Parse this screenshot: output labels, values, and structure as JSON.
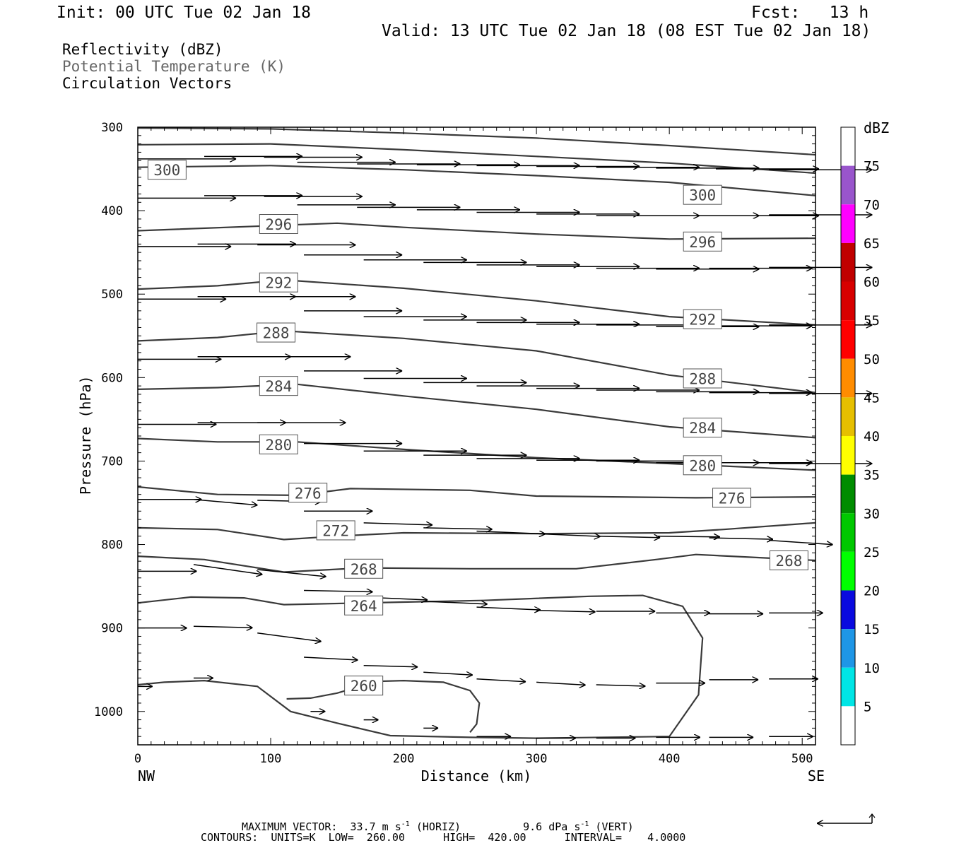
{
  "header": {
    "init": "Init: 00 UTC Tue 02 Jan 18",
    "fcst": "Fcst:   13 h",
    "valid": "Valid: 13 UTC Tue 02 Jan 18 (08 EST Tue 02 Jan 18)"
  },
  "legend": {
    "line1": "Reflectivity (dBZ)",
    "line2": "Potential Temperature (K)",
    "line3": "Circulation Vectors",
    "line2_color": "#666666"
  },
  "footer": {
    "max_vector_line_a": "MAXIMUM VECTOR:  33.7 m s",
    "max_vector_line_b": " (HORIZ)",
    "max_vector_line_c": "9.6 dPa s",
    "max_vector_line_d": " (VERT)",
    "superscript": "-1",
    "contours_line": "CONTOURS:  UNITS=K  LOW=  260.00      HIGH=  420.00      INTERVAL=    4.0000"
  },
  "chart_data": {
    "type": "contour",
    "xlabel": "Distance (km)",
    "ylabel": "Pressure (hPa)",
    "xlim": [
      0,
      510
    ],
    "ylim": [
      300,
      1040
    ],
    "x_ticks": [
      0,
      100,
      200,
      300,
      400,
      500
    ],
    "y_ticks": [
      300,
      400,
      500,
      600,
      700,
      800,
      900,
      1000
    ],
    "x_left_label": "NW",
    "x_right_label": "SE",
    "contours": [
      {
        "level": "300",
        "points": [
          [
            0,
            348
          ],
          [
            100,
            346
          ],
          [
            200,
            351
          ],
          [
            300,
            358
          ],
          [
            400,
            366
          ],
          [
            510,
            382
          ]
        ],
        "labels": [
          [
            22,
            351
          ],
          [
            425,
            381
          ]
        ]
      },
      {
        "level": "",
        "points": [
          [
            0,
            321
          ],
          [
            100,
            320
          ],
          [
            200,
            327
          ],
          [
            300,
            335
          ],
          [
            400,
            343
          ],
          [
            510,
            355
          ]
        ],
        "labels": []
      },
      {
        "level": "",
        "points": [
          [
            0,
            301
          ],
          [
            100,
            302
          ],
          [
            200,
            307
          ],
          [
            300,
            313
          ],
          [
            400,
            322
          ],
          [
            510,
            333
          ]
        ],
        "labels": []
      },
      {
        "level": "296",
        "points": [
          [
            0,
            424
          ],
          [
            100,
            418
          ],
          [
            150,
            415
          ],
          [
            200,
            420
          ],
          [
            300,
            428
          ],
          [
            400,
            434
          ],
          [
            510,
            433
          ]
        ],
        "labels": [
          [
            106,
            416
          ],
          [
            425,
            437
          ]
        ]
      },
      {
        "level": "292",
        "points": [
          [
            0,
            494
          ],
          [
            60,
            490
          ],
          [
            110,
            483
          ],
          [
            200,
            493
          ],
          [
            300,
            508
          ],
          [
            400,
            527
          ],
          [
            510,
            537
          ]
        ],
        "labels": [
          [
            106,
            486
          ],
          [
            425,
            530
          ]
        ]
      },
      {
        "level": "288",
        "points": [
          [
            0,
            556
          ],
          [
            60,
            552
          ],
          [
            110,
            544
          ],
          [
            200,
            553
          ],
          [
            300,
            568
          ],
          [
            400,
            597
          ],
          [
            510,
            618
          ]
        ],
        "labels": [
          [
            104,
            546
          ],
          [
            425,
            601
          ]
        ]
      },
      {
        "level": "284",
        "points": [
          [
            0,
            614
          ],
          [
            60,
            612
          ],
          [
            120,
            608
          ],
          [
            200,
            622
          ],
          [
            300,
            638
          ],
          [
            400,
            659
          ],
          [
            510,
            672
          ]
        ],
        "labels": [
          [
            106,
            610
          ],
          [
            425,
            660
          ]
        ]
      },
      {
        "level": "280",
        "points": [
          [
            0,
            673
          ],
          [
            60,
            677
          ],
          [
            120,
            677
          ],
          [
            200,
            686
          ],
          [
            300,
            696
          ],
          [
            400,
            703
          ],
          [
            510,
            711
          ]
        ],
        "labels": [
          [
            106,
            680
          ],
          [
            425,
            705
          ]
        ]
      },
      {
        "level": "276",
        "points": [
          [
            0,
            731
          ],
          [
            60,
            740
          ],
          [
            120,
            741
          ],
          [
            160,
            733
          ],
          [
            250,
            735
          ],
          [
            300,
            742
          ],
          [
            420,
            744
          ],
          [
            510,
            743
          ]
        ],
        "labels": [
          [
            128,
            738
          ],
          [
            447,
            744
          ]
        ]
      },
      {
        "level": "272",
        "points": [
          [
            0,
            780
          ],
          [
            60,
            782
          ],
          [
            110,
            794
          ],
          [
            150,
            790
          ],
          [
            200,
            786
          ],
          [
            300,
            787
          ],
          [
            400,
            786
          ],
          [
            440,
            782
          ],
          [
            510,
            774
          ]
        ],
        "labels": [
          [
            149,
            783
          ],
          [
            0,
            0
          ]
        ]
      },
      {
        "level": "268",
        "points": [
          [
            0,
            814
          ],
          [
            50,
            818
          ],
          [
            110,
            833
          ],
          [
            170,
            828
          ],
          [
            250,
            829
          ],
          [
            330,
            829
          ],
          [
            390,
            818
          ],
          [
            420,
            812
          ],
          [
            510,
            819
          ]
        ],
        "labels": [
          [
            170,
            829
          ],
          [
            490,
            819
          ]
        ]
      },
      {
        "level": "264",
        "points": [
          [
            0,
            870
          ],
          [
            40,
            863
          ],
          [
            80,
            864
          ],
          [
            110,
            872
          ],
          [
            200,
            869
          ],
          [
            260,
            867
          ],
          [
            340,
            862
          ],
          [
            380,
            861
          ],
          [
            410,
            874
          ],
          [
            425,
            912
          ],
          [
            422,
            980
          ],
          [
            400,
            1030
          ],
          [
            300,
            1032
          ],
          [
            250,
            1031
          ],
          [
            190,
            1029
          ],
          [
            150,
            1014
          ],
          [
            115,
            1000
          ],
          [
            90,
            970
          ],
          [
            50,
            963
          ],
          [
            20,
            965
          ],
          [
            0,
            968
          ]
        ],
        "labels": [
          [
            170,
            873
          ],
          [
            0,
            0
          ]
        ]
      },
      {
        "level": "260",
        "points": [
          [
            112,
            985
          ],
          [
            130,
            984
          ],
          [
            150,
            978
          ],
          [
            180,
            964
          ],
          [
            200,
            963
          ],
          [
            230,
            965
          ],
          [
            250,
            975
          ],
          [
            257,
            990
          ],
          [
            255,
            1015
          ],
          [
            250,
            1025
          ]
        ],
        "labels": [
          [
            170,
            969
          ],
          [
            0,
            0
          ]
        ]
      }
    ],
    "vectors": [
      [
        0,
        338,
        40,
        0
      ],
      [
        50,
        335,
        40,
        0
      ],
      [
        95,
        336,
        40,
        0
      ],
      [
        120,
        342,
        40,
        0
      ],
      [
        165,
        344,
        42,
        0
      ],
      [
        210,
        345,
        42,
        0
      ],
      [
        255,
        346,
        42,
        0
      ],
      [
        300,
        347,
        42,
        0
      ],
      [
        345,
        348,
        42,
        0
      ],
      [
        390,
        349,
        42,
        0
      ],
      [
        435,
        350,
        42,
        0
      ],
      [
        475,
        351,
        42,
        0
      ],
      [
        0,
        385,
        40,
        0
      ],
      [
        50,
        382,
        40,
        0
      ],
      [
        95,
        383,
        40,
        0
      ],
      [
        120,
        393,
        40,
        0
      ],
      [
        165,
        396,
        42,
        0
      ],
      [
        210,
        399,
        42,
        0
      ],
      [
        255,
        402,
        42,
        0
      ],
      [
        300,
        404,
        42,
        0
      ],
      [
        345,
        406,
        42,
        0
      ],
      [
        390,
        406,
        42,
        0
      ],
      [
        435,
        406,
        42,
        0
      ],
      [
        475,
        405,
        42,
        0
      ],
      [
        0,
        443,
        38,
        0
      ],
      [
        45,
        440,
        40,
        0
      ],
      [
        90,
        441,
        40,
        0
      ],
      [
        125,
        453,
        40,
        0
      ],
      [
        170,
        459,
        42,
        0
      ],
      [
        215,
        462,
        42,
        0
      ],
      [
        255,
        465,
        42,
        0
      ],
      [
        300,
        467,
        42,
        0
      ],
      [
        345,
        469,
        42,
        0
      ],
      [
        390,
        470,
        42,
        0
      ],
      [
        430,
        469,
        42,
        0
      ],
      [
        475,
        468,
        42,
        0
      ],
      [
        0,
        506,
        36,
        0
      ],
      [
        45,
        503,
        40,
        0
      ],
      [
        90,
        503,
        40,
        0
      ],
      [
        125,
        520,
        40,
        0
      ],
      [
        170,
        527,
        42,
        0
      ],
      [
        215,
        531,
        42,
        0
      ],
      [
        255,
        534,
        42,
        0
      ],
      [
        300,
        536,
        42,
        0
      ],
      [
        345,
        537,
        42,
        0
      ],
      [
        390,
        539,
        42,
        0
      ],
      [
        430,
        538,
        42,
        0
      ],
      [
        475,
        537,
        42,
        0
      ],
      [
        0,
        578,
        34,
        0
      ],
      [
        45,
        575,
        38,
        0
      ],
      [
        90,
        575,
        38,
        0
      ],
      [
        125,
        592,
        40,
        0
      ],
      [
        170,
        601,
        42,
        0
      ],
      [
        215,
        606,
        42,
        0
      ],
      [
        255,
        610,
        42,
        0
      ],
      [
        300,
        613,
        42,
        0
      ],
      [
        345,
        615,
        42,
        0
      ],
      [
        390,
        617,
        42,
        0
      ],
      [
        430,
        618,
        42,
        0
      ],
      [
        475,
        619,
        42,
        0
      ],
      [
        0,
        656,
        32,
        0
      ],
      [
        45,
        654,
        36,
        0
      ],
      [
        90,
        654,
        36,
        0
      ],
      [
        125,
        679,
        40,
        0
      ],
      [
        170,
        688,
        42,
        0
      ],
      [
        215,
        693,
        42,
        0
      ],
      [
        255,
        697,
        42,
        0
      ],
      [
        300,
        699,
        42,
        0
      ],
      [
        345,
        700,
        42,
        0
      ],
      [
        390,
        702,
        42,
        0
      ],
      [
        430,
        702,
        42,
        0
      ],
      [
        475,
        703,
        42,
        0
      ],
      [
        0,
        746,
        26,
        0
      ],
      [
        42,
        746,
        26,
        8
      ],
      [
        90,
        747,
        26,
        2
      ],
      [
        125,
        760,
        28,
        0
      ],
      [
        170,
        774,
        28,
        3
      ],
      [
        215,
        780,
        28,
        2
      ],
      [
        255,
        784,
        28,
        4
      ],
      [
        300,
        787,
        26,
        4
      ],
      [
        345,
        790,
        26,
        2
      ],
      [
        390,
        790,
        26,
        1
      ],
      [
        430,
        792,
        26,
        2
      ],
      [
        475,
        795,
        26,
        6
      ],
      [
        0,
        832,
        24,
        0
      ],
      [
        42,
        824,
        28,
        14
      ],
      [
        90,
        830,
        28,
        10
      ],
      [
        125,
        855,
        28,
        2
      ],
      [
        170,
        863,
        26,
        4
      ],
      [
        215,
        868,
        26,
        4
      ],
      [
        255,
        875,
        26,
        4
      ],
      [
        300,
        879,
        24,
        2
      ],
      [
        345,
        880,
        24,
        0
      ],
      [
        390,
        882,
        22,
        0
      ],
      [
        430,
        883,
        22,
        0
      ],
      [
        475,
        882,
        22,
        0
      ],
      [
        0,
        900,
        20,
        0
      ],
      [
        42,
        898,
        24,
        2
      ],
      [
        90,
        906,
        26,
        12
      ],
      [
        125,
        935,
        22,
        4
      ],
      [
        170,
        945,
        22,
        2
      ],
      [
        215,
        953,
        20,
        4
      ],
      [
        255,
        961,
        20,
        4
      ],
      [
        300,
        965,
        20,
        4
      ],
      [
        345,
        968,
        20,
        2
      ],
      [
        390,
        966,
        20,
        0
      ],
      [
        430,
        962,
        20,
        0
      ],
      [
        475,
        961,
        20,
        0
      ],
      [
        0,
        970,
        6,
        0
      ],
      [
        42,
        960,
        8,
        0
      ],
      [
        130,
        1000,
        6,
        0
      ],
      [
        170,
        1010,
        6,
        0
      ],
      [
        215,
        1020,
        6,
        0
      ],
      [
        255,
        1030,
        14,
        0
      ],
      [
        300,
        1032,
        16,
        0
      ],
      [
        345,
        1032,
        16,
        0
      ],
      [
        390,
        1031,
        18,
        0
      ],
      [
        430,
        1031,
        18,
        0
      ],
      [
        475,
        1030,
        18,
        0
      ]
    ],
    "colorbar": {
      "label": "dBZ",
      "levels": [
        "5",
        "10",
        "15",
        "20",
        "25",
        "30",
        "35",
        "40",
        "45",
        "50",
        "55",
        "60",
        "65",
        "70",
        "75"
      ],
      "colors": [
        "#ffffff",
        "#00e5e5",
        "#1e96e6",
        "#0a0adf",
        "#00ff00",
        "#00c800",
        "#008c00",
        "#ffff00",
        "#e6bf00",
        "#ff8c00",
        "#ff0000",
        "#d70000",
        "#c00000",
        "#ff00ff",
        "#9955cc",
        "#ffffff"
      ]
    }
  }
}
